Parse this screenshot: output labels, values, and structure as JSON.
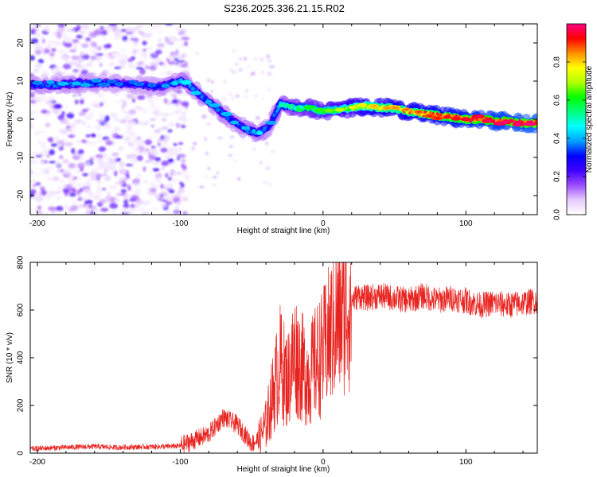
{
  "title": "S236.2025.336.21.15.R02",
  "chart_data": [
    {
      "type": "heatmap",
      "name": "spectrogram",
      "xlabel": "Height of straight line (km)",
      "ylabel": "Frequency (Hz)",
      "xlim": [
        -205,
        150
      ],
      "ylim": [
        -25,
        25
      ],
      "xticks": [
        -200,
        -100,
        0,
        100
      ],
      "yticks": [
        -20,
        -10,
        0,
        10,
        20
      ],
      "colorbar": {
        "label": "Normalized spectral amplitude",
        "range": [
          0,
          1
        ],
        "ticks": [
          0.0,
          0.2,
          0.4,
          0.6,
          0.8
        ],
        "colors": [
          "#ffffff",
          "#e6ccff",
          "#9b4dff",
          "#4000ff",
          "#0000ff",
          "#00a0ff",
          "#00ffff",
          "#00ff80",
          "#00ff00",
          "#b0ff00",
          "#ffff00",
          "#ff9000",
          "#ff0000",
          "#ff0080"
        ]
      },
      "ridge": {
        "x": [
          -205,
          -185,
          -170,
          -150,
          -130,
          -115,
          -100,
          -95,
          -85,
          -75,
          -65,
          -55,
          -48,
          -42,
          -38,
          -30,
          -20,
          -10,
          0,
          10,
          20,
          30,
          40,
          50,
          60,
          70,
          80,
          90,
          100,
          110,
          120,
          130,
          140,
          150
        ],
        "y": [
          9,
          9,
          9.5,
          9.5,
          9,
          8.5,
          10,
          9.5,
          6,
          3,
          0,
          -2.5,
          -3.5,
          -3,
          -2,
          4,
          3,
          3,
          2,
          2.5,
          3,
          3.5,
          3,
          3,
          2,
          1.5,
          1,
          0.5,
          0,
          0,
          -0.5,
          -0.5,
          -1,
          -1
        ],
        "amplitude": [
          0.3,
          0.35,
          0.35,
          0.3,
          0.3,
          0.3,
          0.4,
          0.4,
          0.35,
          0.35,
          0.35,
          0.35,
          0.4,
          0.4,
          0.3,
          0.45,
          0.5,
          0.55,
          0.6,
          0.65,
          0.7,
          0.75,
          0.8,
          0.8,
          0.82,
          0.85,
          0.88,
          0.9,
          0.92,
          0.94,
          0.96,
          0.97,
          0.98,
          0.99
        ]
      }
    },
    {
      "type": "line",
      "name": "snr",
      "xlabel": "Height of straight line (km)",
      "ylabel": "SNR (10 * v/v)",
      "xlim": [
        -205,
        150
      ],
      "ylim": [
        0,
        800
      ],
      "xticks": [
        -200,
        -100,
        0,
        100
      ],
      "yticks": [
        0,
        200,
        400,
        600,
        800
      ],
      "color": "#e8231f",
      "series": [
        {
          "name": "SNR",
          "x": [
            -205,
            -190,
            -175,
            -160,
            -145,
            -130,
            -115,
            -100,
            -90,
            -80,
            -70,
            -60,
            -50,
            -45,
            -40,
            -35,
            -30,
            -25,
            -20,
            -15,
            -10,
            -5,
            0,
            5,
            10,
            15,
            20,
            25,
            30,
            40,
            50,
            60,
            70,
            80,
            90,
            100,
            110,
            120,
            130,
            140,
            150
          ],
          "values": [
            18,
            22,
            25,
            28,
            24,
            26,
            27,
            30,
            55,
            80,
            150,
            120,
            40,
            60,
            120,
            250,
            380,
            300,
            420,
            360,
            320,
            380,
            420,
            500,
            560,
            610,
            640,
            660,
            650,
            660,
            650,
            640,
            660,
            640,
            650,
            640,
            620,
            630,
            620,
            630,
            640
          ]
        }
      ]
    }
  ]
}
